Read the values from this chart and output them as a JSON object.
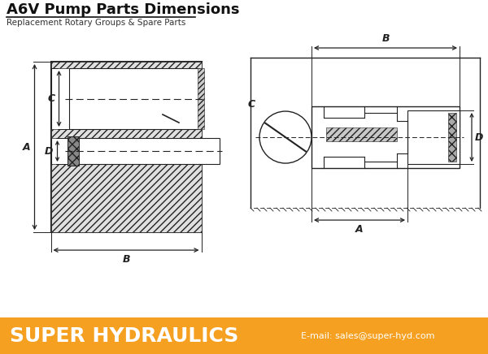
{
  "title": "A6V Pump Parts Dimensions",
  "subtitle": "Replacement Rotary Groups & Spare Parts",
  "footer_text": "SUPER HYDRAULICS",
  "footer_email": "E-mail: sales@super-hyd.com",
  "footer_bg": "#F5A020",
  "footer_text_color": "#FFFFFF",
  "bg_color": "#FFFFFF",
  "line_color": "#222222",
  "hatch_color": "#555555"
}
